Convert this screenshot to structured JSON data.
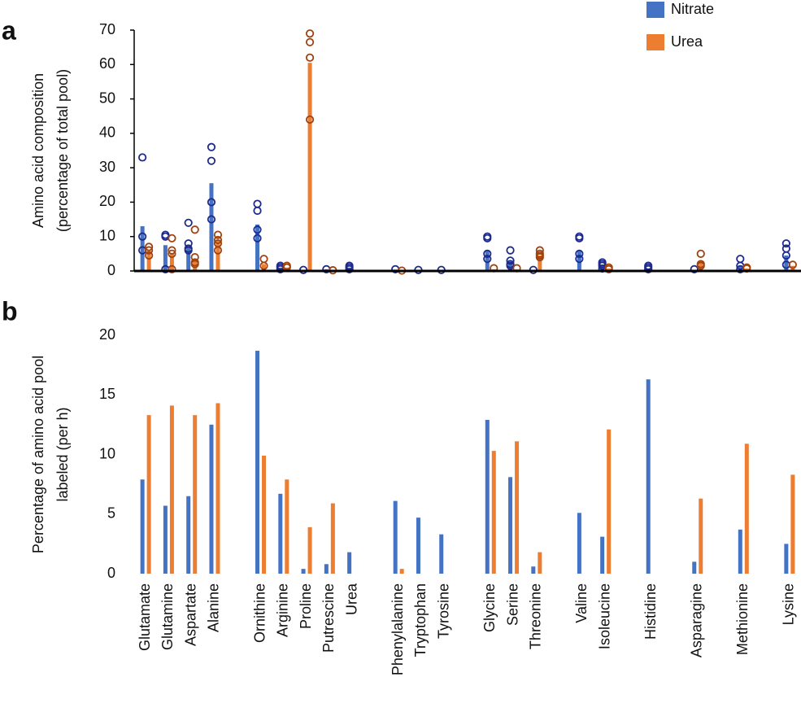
{
  "chart_data": [
    {
      "type": "bar",
      "panel": "a",
      "y_label": [
        "Amino acid composition",
        "(percentage of total pool)"
      ],
      "ylim": [
        0,
        70
      ],
      "yticks": [
        0,
        10,
        20,
        30,
        40,
        50,
        60,
        70
      ],
      "legend": "top right",
      "series": [
        {
          "name": "Nitrate",
          "color": "#4472c4",
          "point_color": "#1c2a8c",
          "values": [
            13,
            7.5,
            7,
            25.5,
            null,
            13.5,
            1,
            0.3,
            0.5,
            1,
            null,
            0.4,
            0.3,
            0.3,
            null,
            6,
            2.5,
            0.3,
            null,
            6,
            1.5,
            null,
            0.7,
            null,
            0.3,
            null,
            1.5,
            null,
            4.5
          ],
          "points": [
            [
              33,
              10,
              6
            ],
            [
              10.5,
              10,
              0.5
            ],
            [
              14,
              8,
              6.5,
              6
            ],
            [
              36,
              32,
              20,
              15
            ],
            null,
            [
              19.5,
              17.5,
              12,
              9.5
            ],
            [
              1.5,
              1,
              0.5
            ],
            [
              0.3
            ],
            [
              0.5
            ],
            [
              1.5,
              1,
              0.5
            ],
            null,
            [
              0.5
            ],
            [
              0.3
            ],
            [
              0.3
            ],
            null,
            [
              10,
              9.5,
              5,
              3.5
            ],
            [
              6,
              3,
              2,
              1.5
            ],
            [
              0.3
            ],
            null,
            [
              10,
              9.5,
              5,
              3.5
            ],
            [
              2.5,
              2,
              1.5,
              0.7
            ],
            null,
            [
              1.5,
              1,
              0.5
            ],
            null,
            [
              0.5
            ],
            null,
            [
              3.5,
              1.5,
              0.5
            ],
            null,
            [
              8,
              6.5,
              4.5,
              1.8
            ]
          ]
        },
        {
          "name": "Urea",
          "color": "#ed7d31",
          "point_color": "#a0420f",
          "values": [
            6,
            5,
            3.5,
            9,
            null,
            2,
            1,
            60.5,
            0.1,
            null,
            null,
            0.1,
            null,
            null,
            null,
            0.5,
            0.5,
            4.5,
            null,
            null,
            0.7,
            null,
            null,
            null,
            3,
            null,
            0.7,
            null,
            1.5
          ],
          "points": [
            [
              7,
              6,
              4.5
            ],
            [
              9.5,
              6,
              5,
              0.5
            ],
            [
              12,
              4,
              2.5,
              2
            ],
            [
              10.5,
              9,
              8,
              6
            ],
            null,
            [
              3.5,
              1.5
            ],
            [
              1.5,
              1
            ],
            [
              69,
              66.5,
              62,
              44
            ],
            [
              0.2
            ],
            null,
            null,
            [
              0.1
            ],
            null,
            null,
            null,
            [
              0.8
            ],
            [
              0.8
            ],
            [
              6,
              5,
              4.5,
              4
            ],
            null,
            null,
            [
              1,
              0.5
            ],
            null,
            null,
            null,
            [
              5,
              2,
              1.5
            ],
            null,
            [
              1,
              0.7
            ],
            null,
            [
              1.8
            ]
          ]
        }
      ]
    },
    {
      "type": "bar",
      "panel": "b",
      "y_label": [
        "Percentage of amino acid pool",
        "labeled (per h)"
      ],
      "ylim": [
        0,
        20
      ],
      "yticks": [
        0,
        5,
        10,
        15,
        20
      ],
      "categories": [
        "Glutamate",
        "Glutamine",
        "Aspartate",
        "Alanine",
        null,
        "Ornithine",
        "Arginine",
        "Proline",
        "Putrescine",
        "Urea",
        null,
        "Phenylalanine",
        "Tryptophan",
        "Tyrosine",
        null,
        "Glycine",
        "Serine",
        "Threonine",
        null,
        "Valine",
        "Isoleucine",
        null,
        "Histidine",
        null,
        "Asparagine",
        null,
        "Methionine",
        null,
        "Lysine"
      ],
      "series": [
        {
          "color": "#4472c4",
          "values": [
            7.9,
            5.7,
            6.5,
            12.5,
            null,
            18.7,
            6.7,
            0.4,
            0.8,
            1.8,
            null,
            6.1,
            4.7,
            3.3,
            null,
            12.9,
            8.1,
            0.6,
            null,
            5.1,
            3.1,
            null,
            16.3,
            null,
            1.0,
            null,
            3.7,
            null,
            2.5
          ]
        },
        {
          "color": "#ed7d31",
          "values": [
            13.3,
            14.1,
            13.3,
            14.3,
            null,
            9.9,
            7.9,
            3.9,
            5.9,
            null,
            null,
            0.4,
            null,
            null,
            null,
            10.3,
            11.1,
            1.8,
            null,
            null,
            12.1,
            null,
            null,
            null,
            6.3,
            null,
            10.9,
            null,
            8.3
          ]
        }
      ]
    }
  ]
}
